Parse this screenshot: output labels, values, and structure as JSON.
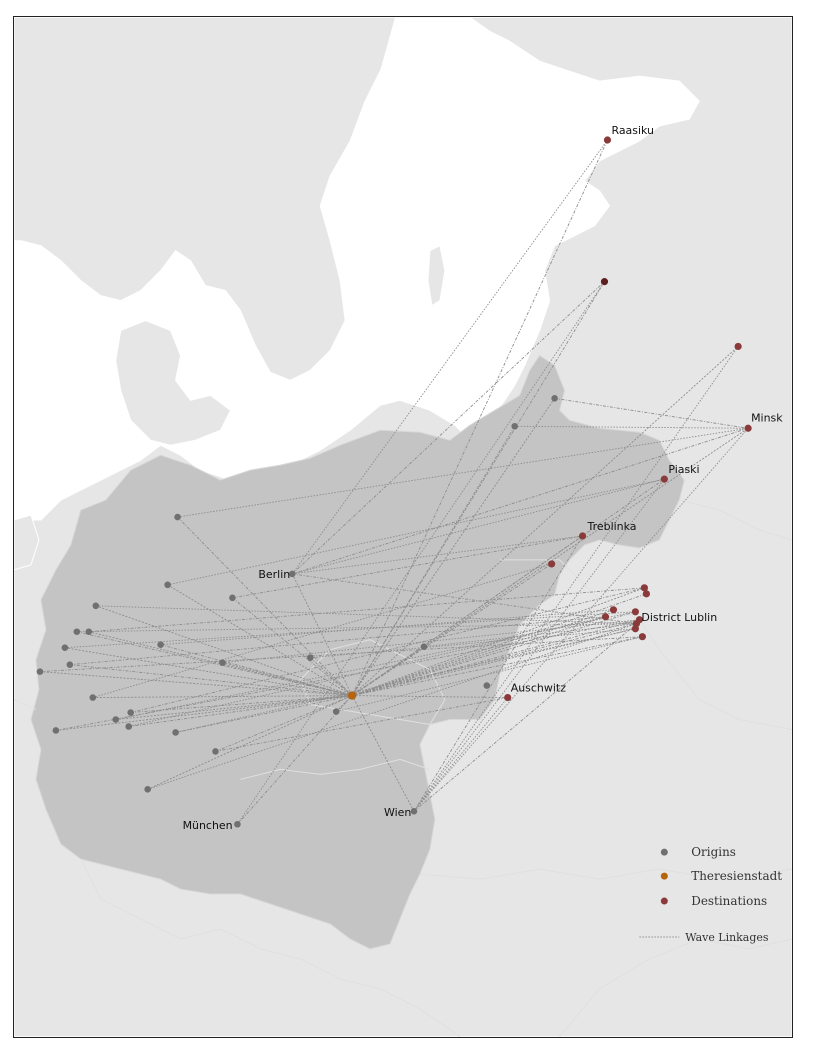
{
  "colors": {
    "land": "#e6e6e6",
    "water": "#ffffff",
    "reich": "#c4c4c4",
    "borders": "#ffffff",
    "origin": "#707070",
    "theresienstadt": "#b5650d",
    "destination": "#8a3a3a",
    "linkage": "#8c8c8c"
  },
  "hub": {
    "name": "Theresienstadt",
    "icon": "theresienstadt-point"
  },
  "origins": [
    {
      "name": "Berlin",
      "label": "Berlin"
    },
    {
      "name": "München",
      "label": "München"
    },
    {
      "name": "Wien",
      "label": "Wien"
    },
    {
      "name": "origin-4",
      "label": ""
    },
    {
      "name": "origin-5",
      "label": ""
    },
    {
      "name": "origin-6",
      "label": ""
    },
    {
      "name": "origin-7",
      "label": ""
    },
    {
      "name": "origin-8",
      "label": ""
    },
    {
      "name": "origin-9",
      "label": ""
    },
    {
      "name": "origin-10",
      "label": ""
    },
    {
      "name": "origin-11",
      "label": ""
    },
    {
      "name": "origin-12",
      "label": ""
    },
    {
      "name": "origin-13",
      "label": ""
    },
    {
      "name": "origin-14",
      "label": ""
    },
    {
      "name": "origin-15",
      "label": ""
    },
    {
      "name": "origin-16",
      "label": ""
    },
    {
      "name": "origin-17",
      "label": ""
    },
    {
      "name": "origin-18",
      "label": ""
    },
    {
      "name": "origin-19",
      "label": ""
    },
    {
      "name": "origin-20",
      "label": ""
    },
    {
      "name": "origin-21",
      "label": ""
    },
    {
      "name": "origin-22",
      "label": ""
    },
    {
      "name": "origin-23",
      "label": ""
    },
    {
      "name": "origin-24",
      "label": ""
    },
    {
      "name": "origin-25",
      "label": ""
    },
    {
      "name": "origin-26",
      "label": ""
    },
    {
      "name": "origin-27",
      "label": ""
    }
  ],
  "destinations": [
    {
      "name": "Raasiku",
      "label": "Raasiku"
    },
    {
      "name": "Minsk",
      "label": "Minsk"
    },
    {
      "name": "Piaski",
      "label": "Piaski"
    },
    {
      "name": "Treblinka",
      "label": "Treblinka"
    },
    {
      "name": "District Lublin",
      "label": "District Lublin"
    },
    {
      "name": "Auschwitz",
      "label": "Auschwitz"
    },
    {
      "name": "dest-riga",
      "label": ""
    },
    {
      "name": "dest-east",
      "label": ""
    },
    {
      "name": "dest-warsaw",
      "label": ""
    },
    {
      "name": "dest-lublin-2",
      "label": ""
    },
    {
      "name": "dest-lublin-3",
      "label": ""
    },
    {
      "name": "dest-lublin-4",
      "label": ""
    },
    {
      "name": "dest-lublin-5",
      "label": ""
    },
    {
      "name": "dest-lublin-6",
      "label": ""
    },
    {
      "name": "dest-lublin-7",
      "label": ""
    },
    {
      "name": "dest-lublin-8",
      "label": ""
    },
    {
      "name": "dest-lublin-9",
      "label": ""
    }
  ],
  "legend": {
    "origins": "Origins",
    "theresienstadt": "Theresienstadt",
    "destinations": "Destinations",
    "wave_linkages": "Wave Linkages"
  }
}
